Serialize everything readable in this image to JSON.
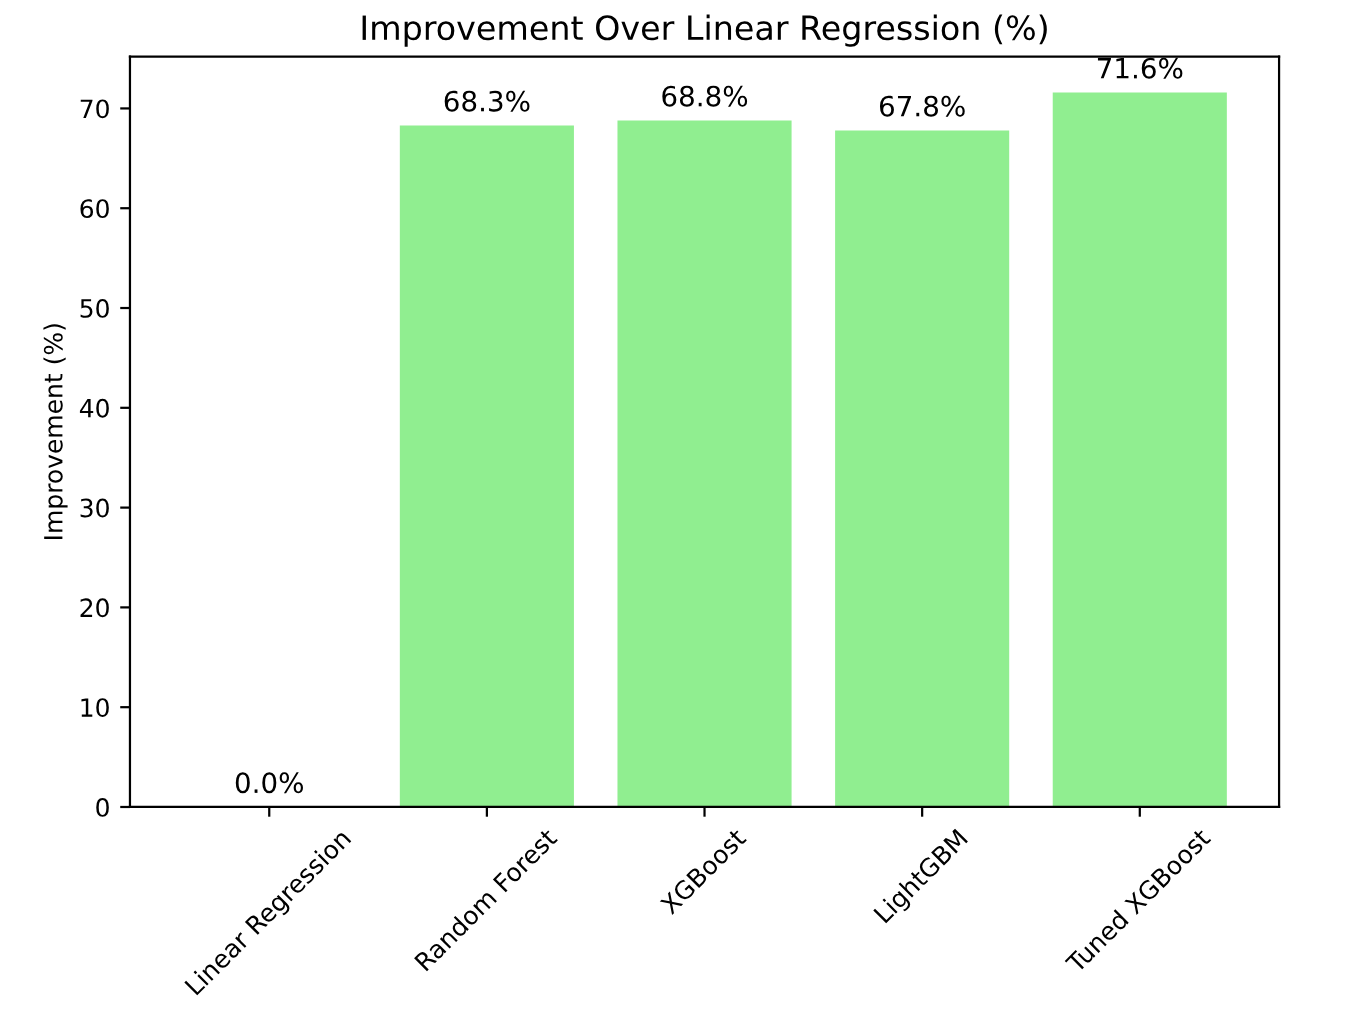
{
  "chart_data": {
    "type": "bar",
    "title": "Improvement Over Linear Regression (%)",
    "ylabel": "Improvement (%)",
    "categories": [
      "Linear Regression",
      "Random Forest",
      "XGBoost",
      "LightGBM",
      "Tuned XGBoost"
    ],
    "values": [
      0.0,
      68.3,
      68.8,
      67.8,
      71.6
    ],
    "value_labels": [
      "0.0%",
      "68.3%",
      "68.8%",
      "67.8%",
      "71.6%"
    ],
    "color": "#90ee90",
    "ylim": [
      0,
      75.2
    ],
    "yticks": [
      0,
      10,
      20,
      30,
      40,
      50,
      60,
      70
    ],
    "grid": false
  }
}
